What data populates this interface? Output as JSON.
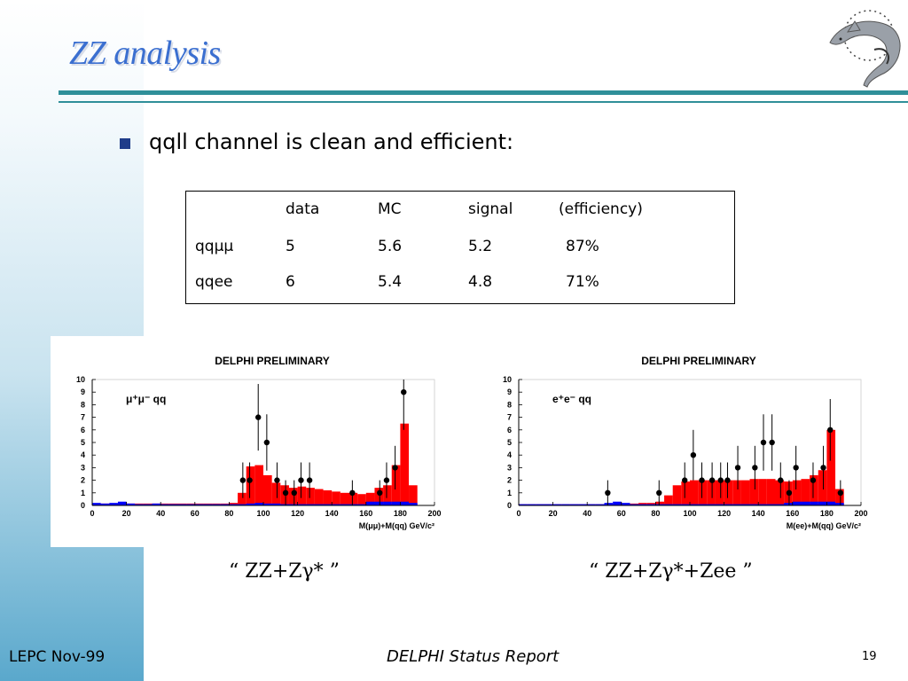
{
  "slide": {
    "title": "ZZ analysis",
    "bullet": "qqll channel is clean and efficient:",
    "footer_left": "LEPC Nov-99",
    "footer_center": "DELPHI Status Report",
    "page_number": "19"
  },
  "table": {
    "headers": [
      "",
      "data",
      "MC",
      "signal",
      "(efficiency)"
    ],
    "rows": [
      [
        "qqμμ",
        "5",
        "5.6",
        "5.2",
        "87%"
      ],
      [
        "qqee",
        "6",
        "5.4",
        "4.8",
        "71%"
      ]
    ]
  },
  "captions": [
    "“ ZZ+Zγ* ”",
    "“ ZZ+Zγ*+Zee ”"
  ],
  "colors": {
    "title": "#3b6fd0",
    "rule": "#2f8f99",
    "bullet": "#1f3d8a",
    "mc_fill": "#ff0000",
    "background_fill": "#0000ff",
    "data_marker": "#000000"
  },
  "chart_data": [
    {
      "type": "bar",
      "title": "DELPHI  PRELIMINARY",
      "annotation": "μ⁺μ⁻ qq",
      "xlabel": "M(μμ)+M(qq) GeV/c²",
      "xlim": [
        0,
        200
      ],
      "ylim": [
        0,
        10
      ],
      "x_ticks": [
        0,
        20,
        40,
        60,
        80,
        100,
        120,
        140,
        160,
        180,
        200
      ],
      "y_ticks": [
        0,
        1,
        2,
        3,
        4,
        5,
        6,
        7,
        8,
        9,
        10
      ],
      "bin_edges": [
        0,
        5,
        10,
        15,
        20,
        25,
        30,
        35,
        40,
        45,
        50,
        55,
        60,
        65,
        70,
        75,
        80,
        85,
        90,
        95,
        100,
        105,
        110,
        115,
        120,
        125,
        130,
        135,
        140,
        145,
        150,
        155,
        160,
        165,
        170,
        175,
        180,
        185,
        190
      ],
      "series": [
        {
          "name": "MC",
          "kind": "histogram",
          "values": [
            0.15,
            0.15,
            0.15,
            0.1,
            0.15,
            0.15,
            0.15,
            0.15,
            0.15,
            0.15,
            0.15,
            0.15,
            0.15,
            0.15,
            0.15,
            0.15,
            0.2,
            1.0,
            3.1,
            3.2,
            2.4,
            1.8,
            1.6,
            1.4,
            1.5,
            1.4,
            1.3,
            1.2,
            1.1,
            1.0,
            1.0,
            0.9,
            1.0,
            1.4,
            1.6,
            3.2,
            6.5,
            1.6
          ]
        },
        {
          "name": "background",
          "kind": "histogram",
          "values": [
            0.2,
            0.15,
            0.2,
            0.3,
            0.15,
            0.1,
            0.1,
            0.15,
            0.1,
            0.1,
            0.1,
            0.1,
            0.1,
            0.1,
            0.1,
            0.1,
            0.1,
            0.1,
            0.15,
            0.2,
            0.15,
            0.15,
            0.1,
            0.1,
            0.1,
            0.1,
            0.1,
            0.1,
            0.1,
            0.1,
            0.1,
            0.1,
            0.3,
            0.3,
            0.3,
            0.3,
            0.3,
            0.2
          ]
        },
        {
          "name": "data",
          "kind": "points",
          "points": [
            [
              88,
              2
            ],
            [
              92,
              2
            ],
            [
              97,
              7
            ],
            [
              102,
              5
            ],
            [
              108,
              2
            ],
            [
              113,
              1
            ],
            [
              118,
              1
            ],
            [
              122,
              2
            ],
            [
              127,
              2
            ],
            [
              152,
              1
            ],
            [
              168,
              1
            ],
            [
              172,
              2
            ],
            [
              177,
              3
            ],
            [
              182,
              9
            ]
          ]
        }
      ]
    },
    {
      "type": "bar",
      "title": "DELPHI  PRELIMINARY",
      "annotation": "e⁺e⁻ qq",
      "xlabel": "M(ee)+M(qq) GeV/c²",
      "xlim": [
        0,
        200
      ],
      "ylim": [
        0,
        10
      ],
      "x_ticks": [
        0,
        20,
        40,
        60,
        80,
        100,
        120,
        140,
        160,
        180,
        200
      ],
      "y_ticks": [
        0,
        1,
        2,
        3,
        4,
        5,
        6,
        7,
        8,
        9,
        10
      ],
      "bin_edges": [
        0,
        5,
        10,
        15,
        20,
        25,
        30,
        35,
        40,
        45,
        50,
        55,
        60,
        65,
        70,
        75,
        80,
        85,
        90,
        95,
        100,
        105,
        110,
        115,
        120,
        125,
        130,
        135,
        140,
        145,
        150,
        155,
        160,
        165,
        170,
        175,
        180,
        185,
        190
      ],
      "series": [
        {
          "name": "MC",
          "kind": "histogram",
          "values": [
            0.1,
            0.1,
            0.1,
            0.1,
            0.1,
            0.1,
            0.1,
            0.1,
            0.1,
            0.1,
            0.1,
            0.1,
            0.15,
            0.15,
            0.2,
            0.2,
            0.3,
            0.8,
            1.6,
            1.9,
            2.0,
            2.0,
            2.0,
            2.0,
            2.0,
            2.0,
            2.0,
            2.1,
            2.1,
            2.1,
            2.0,
            1.9,
            2.0,
            2.1,
            2.4,
            2.8,
            6.0,
            1.3
          ]
        },
        {
          "name": "background",
          "kind": "histogram",
          "values": [
            0.1,
            0.1,
            0.1,
            0.1,
            0.1,
            0.1,
            0.1,
            0.1,
            0.1,
            0.1,
            0.2,
            0.3,
            0.2,
            0.1,
            0.1,
            0.1,
            0.1,
            0.1,
            0.1,
            0.1,
            0.1,
            0.1,
            0.1,
            0.1,
            0.1,
            0.1,
            0.1,
            0.1,
            0.1,
            0.1,
            0.1,
            0.2,
            0.3,
            0.3,
            0.3,
            0.3,
            0.3,
            0.2
          ]
        },
        {
          "name": "data",
          "kind": "points",
          "points": [
            [
              52,
              1
            ],
            [
              82,
              1
            ],
            [
              97,
              2
            ],
            [
              102,
              4
            ],
            [
              107,
              2
            ],
            [
              113,
              2
            ],
            [
              118,
              2
            ],
            [
              122,
              2
            ],
            [
              128,
              3
            ],
            [
              138,
              3
            ],
            [
              143,
              5
            ],
            [
              148,
              5
            ],
            [
              153,
              2
            ],
            [
              158,
              1
            ],
            [
              162,
              3
            ],
            [
              172,
              2
            ],
            [
              178,
              3
            ],
            [
              182,
              6
            ],
            [
              188,
              1
            ]
          ]
        }
      ]
    }
  ]
}
